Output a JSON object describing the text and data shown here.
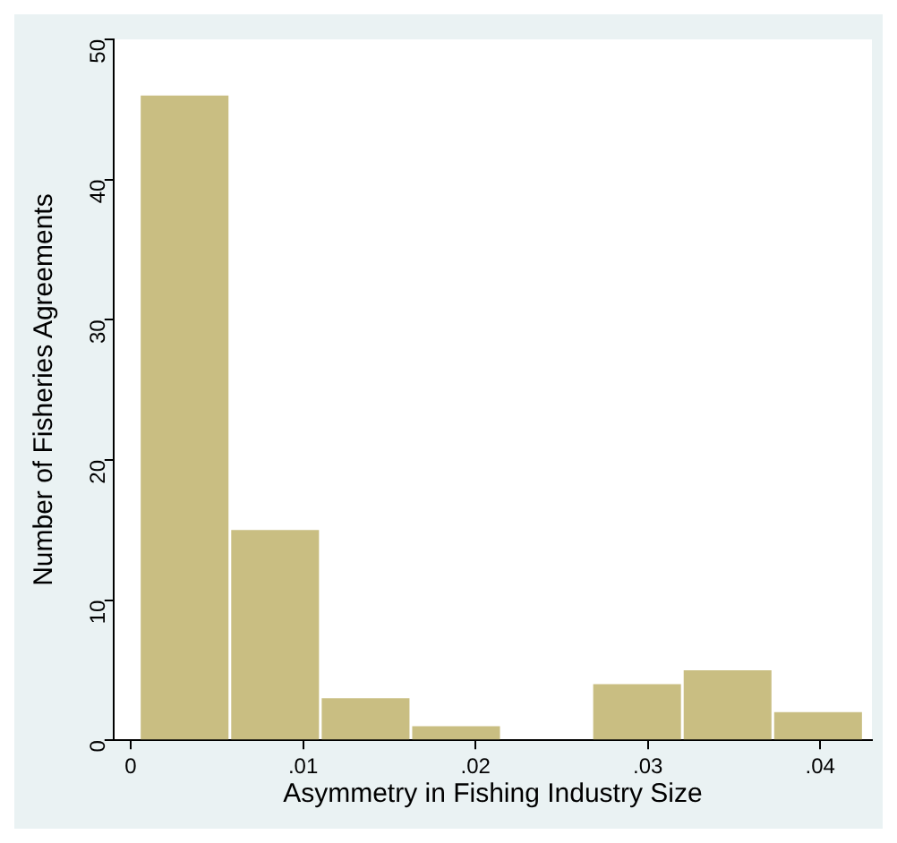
{
  "chart_data": {
    "type": "histogram",
    "xlabel": "Asymmetry in Fishing Industry Size",
    "ylabel": "Number of Fisheries Agreements",
    "bins": [
      0.0005,
      0.00575,
      0.011,
      0.01625,
      0.0215,
      0.02675,
      0.032,
      0.03725,
      0.0425
    ],
    "values": [
      46,
      15,
      3,
      1,
      0,
      4,
      5,
      2
    ],
    "color": "#c9be82",
    "xlim": [
      -0.001,
      0.043
    ],
    "xticks": [
      {
        "value": 0,
        "label": "0"
      },
      {
        "value": 0.01,
        "label": ".01"
      },
      {
        "value": 0.02,
        "label": ".02"
      },
      {
        "value": 0.03,
        "label": ".03"
      },
      {
        "value": 0.04,
        "label": ".04"
      }
    ],
    "ylim": [
      0,
      50
    ],
    "yticks": [
      0,
      10,
      20,
      30,
      40,
      50
    ],
    "grid": false,
    "legend": false
  }
}
